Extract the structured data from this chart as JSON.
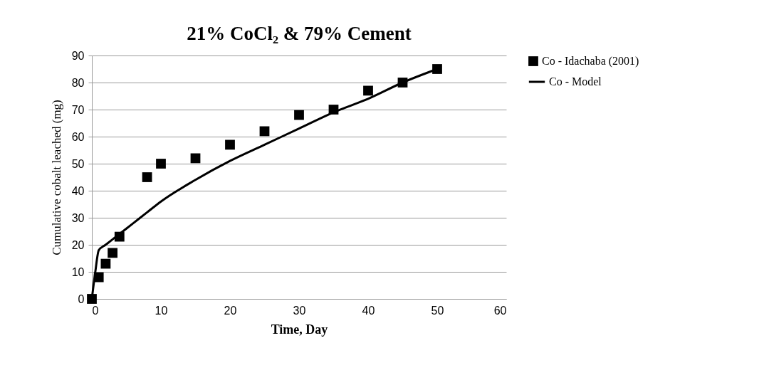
{
  "chart_data": {
    "type": "scatter",
    "title": "21% CoCl₂ & 79% Cement",
    "xlabel": "Time, Day",
    "ylabel": "Cumulative cobalt leached (mg)",
    "xlim": [
      0,
      60
    ],
    "xticks": [
      0,
      10,
      20,
      30,
      40,
      50,
      60
    ],
    "ylim": [
      0,
      90
    ],
    "yticks": [
      0,
      10,
      20,
      30,
      40,
      50,
      60,
      70,
      80,
      90
    ],
    "grid": "y",
    "legend": "right",
    "series": [
      {
        "name": "Co - Idachaba (2001)",
        "marker": "square",
        "color": "#000000",
        "x": [
          0,
          1,
          2,
          3,
          4,
          8,
          10,
          15,
          20,
          25,
          30,
          35,
          40,
          45,
          50
        ],
        "values": [
          0,
          8,
          13,
          17,
          23,
          45,
          50,
          52,
          57,
          62,
          68,
          70,
          77,
          80,
          85
        ]
      },
      {
        "name": "Co - Model",
        "type": "line",
        "color": "#000000",
        "line_style": "solid",
        "x": [
          0,
          0.5,
          1,
          2,
          4,
          6,
          8,
          10,
          15,
          20,
          25,
          30,
          35,
          40,
          45,
          50
        ],
        "values": [
          0,
          10,
          18,
          20,
          24,
          28,
          32,
          36,
          44,
          51,
          57,
          63,
          69,
          74,
          80,
          85
        ]
      }
    ]
  }
}
